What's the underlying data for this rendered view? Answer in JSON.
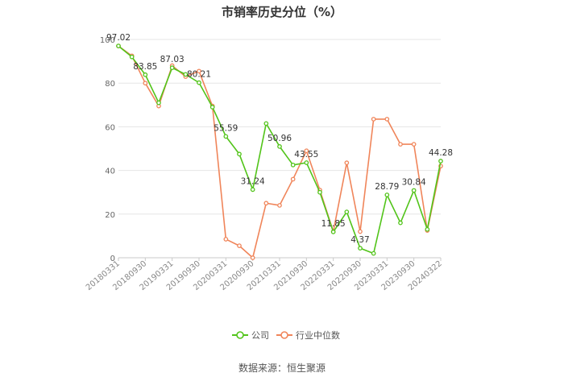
{
  "chart_data": {
    "type": "line",
    "title": "市销率历史分位（%）",
    "xlabel": "",
    "ylabel": "",
    "ylim": [
      0,
      100
    ],
    "yticks": [
      0,
      20,
      40,
      60,
      80,
      100
    ],
    "grid": true,
    "legend_position": "bottom",
    "x_tick_labels": [
      "20180331",
      "20180930",
      "20190331",
      "20190930",
      "20200331",
      "20200930",
      "20210331",
      "20210930",
      "20220331",
      "20220930",
      "20230331",
      "20230930",
      "20240322"
    ],
    "series": [
      {
        "name": "公司",
        "color": "#52c41a",
        "values": [
          97.02,
          92,
          83.85,
          71,
          87.03,
          84,
          80.21,
          69,
          55.59,
          47.5,
          31.24,
          61.5,
          50.96,
          42.5,
          43.55,
          30,
          11.85,
          21,
          4.37,
          2,
          28.79,
          16,
          30.84,
          13,
          44.28
        ],
        "labels": {
          "0": "97.02",
          "2": "83.85",
          "4": "87.03",
          "6": "80.21",
          "8": "55.59",
          "10": "31.24",
          "12": "50.96",
          "14": "43.55",
          "16": "11.85",
          "18": "4.37",
          "20": "28.79",
          "22": "30.84",
          "24": "44.28"
        }
      },
      {
        "name": "行业中位数",
        "color": "#f0855a",
        "values": [
          97,
          92.5,
          80,
          69.5,
          88,
          83,
          85.5,
          69.5,
          8.5,
          5.5,
          0,
          25,
          24,
          36,
          49,
          31,
          12,
          43.5,
          12,
          63.5,
          63.5,
          52,
          52,
          12.5,
          42
        ]
      }
    ]
  },
  "footer": {
    "source": "数据来源：恒生聚源"
  }
}
